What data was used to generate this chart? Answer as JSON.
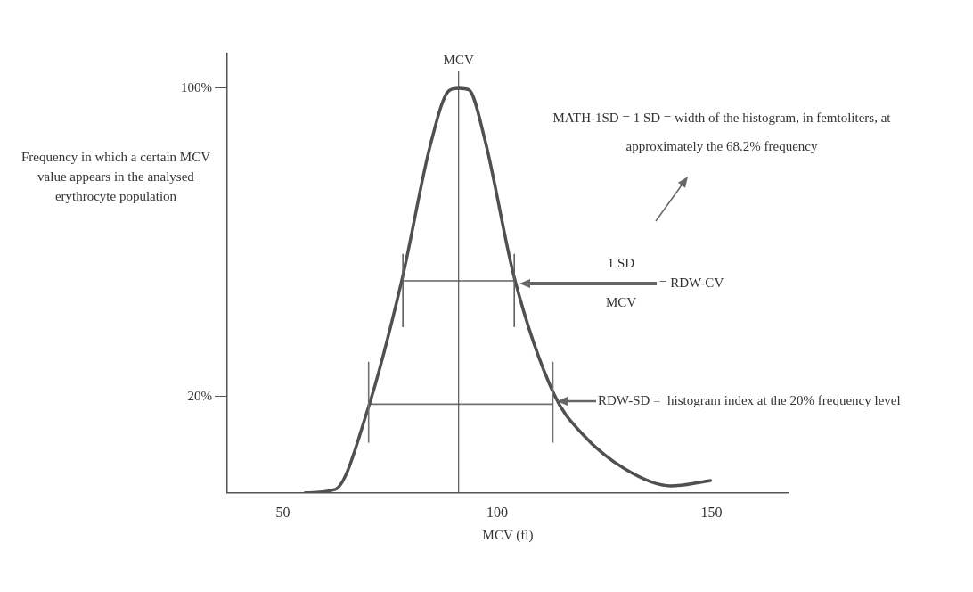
{
  "chart_data": {
    "type": "line",
    "xlabel": "MCV (fl)",
    "ylabel": "Frequency in which a certain MCV value appears in the analysed erythrocyte population",
    "xlim": [
      37,
      168
    ],
    "xticks": [
      50,
      100,
      150
    ],
    "ylim": [
      -5,
      109
    ],
    "yticks": [
      {
        "value": 100,
        "label": "100%"
      },
      {
        "value": 20,
        "label": "20%"
      }
    ],
    "grid": false,
    "legend": false,
    "marker": "none",
    "line_style": "solid",
    "series": [
      {
        "color": "#505050",
        "x": [
          55.2,
          62.2,
          69.7,
          77.8,
          84.4,
          88.8,
          91.1,
          93.4,
          97.1,
          104.1,
          113.3,
          119.7,
          130.1,
          140.5,
          149.8
        ],
        "values": [
          -5,
          -4.1,
          16.3,
          50.4,
          85.2,
          99.4,
          100,
          99.6,
          86.8,
          50.4,
          20.5,
          10.5,
          1,
          -3.2,
          -1.8
        ]
      },
      {
        "color": "#606060",
        "x": [
          78,
          104
        ],
        "values": [
          50,
          50
        ],
        "errors": [
          [
            38,
            57
          ],
          [
            38,
            57
          ]
        ]
      },
      {
        "color": "#707070",
        "x": [
          70,
          113
        ],
        "values": [
          18,
          18
        ],
        "errors": [
          [
            8,
            29
          ],
          [
            8,
            29
          ]
        ]
      }
    ],
    "ref_lines": [
      {
        "axis": "x",
        "value": 91,
        "label": "MCV"
      }
    ],
    "annotations": [
      "MATH-1SD = 1 SD = width of the histogram, in femtoliters, at approximately the 68.2% frequency",
      "1 SD",
      "MCV",
      "= RDW-CV",
      "RDW-SD =  histogram index at the 20% frequency level"
    ]
  }
}
